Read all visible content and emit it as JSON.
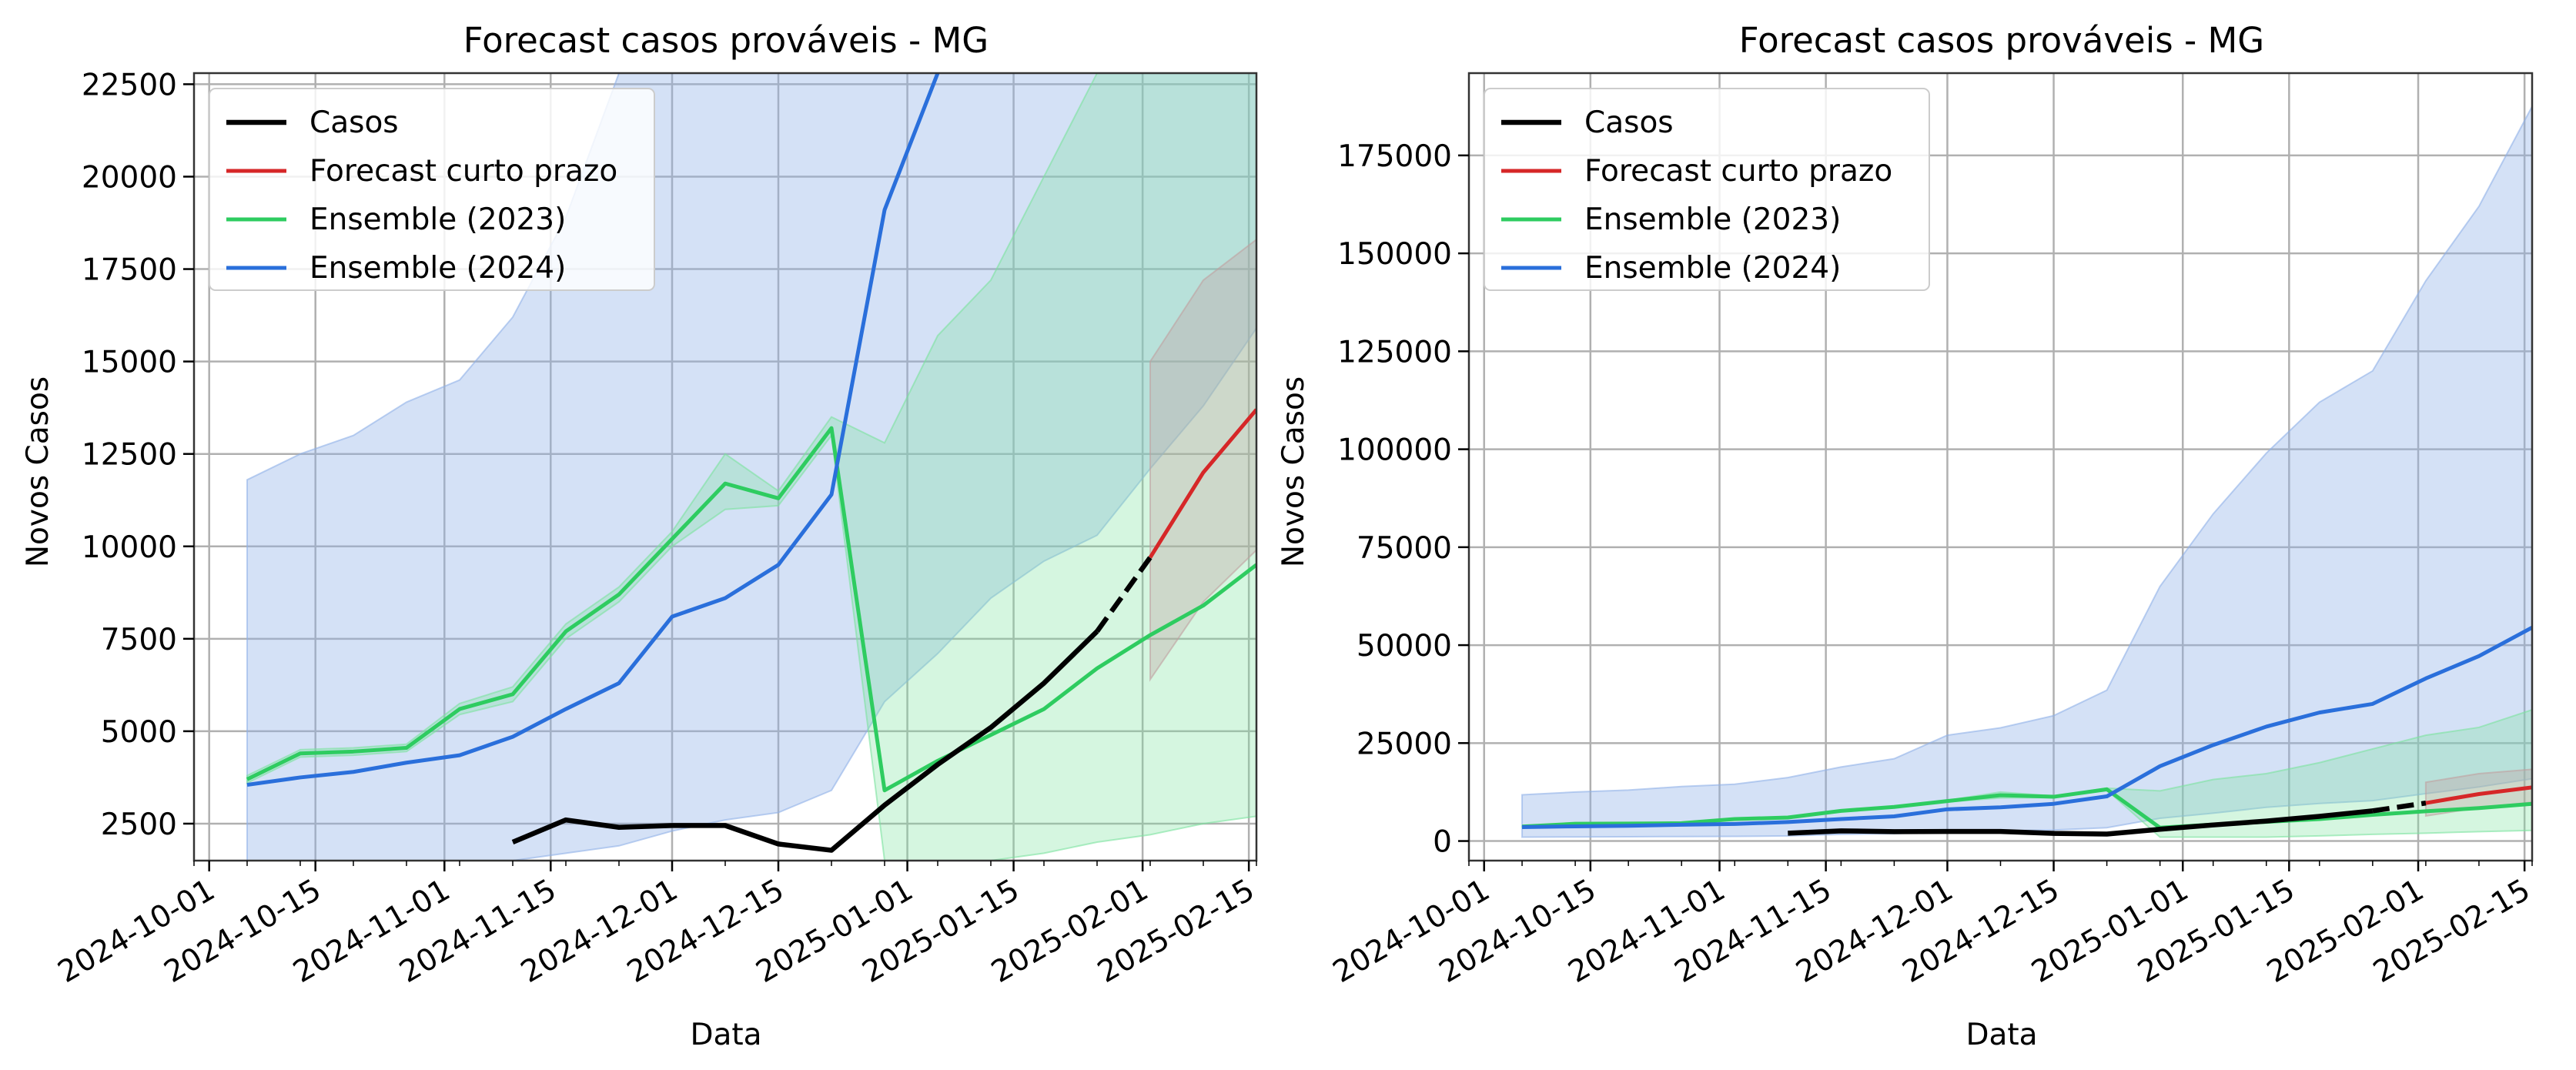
{
  "colors": {
    "casos": "#000000",
    "forecast": "#d62728",
    "ens2023": "#2ecc60",
    "ens2024": "#2a6fdb",
    "band2023": "#7be39f",
    "band2024": "#8fb0e8",
    "bandForecast": "#c0a0a0",
    "grid": "#b0b0b0"
  },
  "chart_data": [
    {
      "type": "line",
      "title": "Forecast casos prováveis - MG",
      "xlabel": "Data",
      "ylabel": "Novos Casos",
      "xlim": [
        "2024-09-29",
        "2025-02-16"
      ],
      "ylim": [
        1500,
        22800
      ],
      "grid": true,
      "legend_position": "top-left",
      "x_ticks": [
        "2024-10-01",
        "2024-10-15",
        "2024-11-01",
        "2024-11-15",
        "2024-12-01",
        "2024-12-15",
        "2025-01-01",
        "2025-01-15",
        "2025-02-01",
        "2025-02-15"
      ],
      "y_ticks": [
        "2500",
        "5000",
        "7500",
        "10000",
        "12500",
        "15000",
        "17500",
        "20000",
        "22500"
      ],
      "legend": [
        "Casos",
        "Forecast curto prazo",
        "Ensemble (2023)",
        "Ensemble (2024)"
      ],
      "series": [
        {
          "name": "Casos",
          "x": [
            "2024-11-10",
            "2024-11-17",
            "2024-11-24",
            "2024-12-01",
            "2024-12-08",
            "2024-12-15",
            "2024-12-22",
            "2024-12-29",
            "2025-01-05",
            "2025-01-12",
            "2025-01-19",
            "2025-01-26"
          ],
          "values": [
            2000,
            2600,
            2400,
            2450,
            2450,
            1950,
            1780,
            3000,
            4100,
            5100,
            6300,
            7700
          ]
        },
        {
          "name": "Casos (dashed)",
          "x": [
            "2025-01-26",
            "2025-02-02"
          ],
          "values": [
            7700,
            9700
          ]
        },
        {
          "name": "Forecast curto prazo",
          "x": [
            "2025-02-02",
            "2025-02-09",
            "2025-02-16"
          ],
          "values": [
            9700,
            12000,
            13700
          ]
        },
        {
          "name": "Ensemble (2023)",
          "x": [
            "2024-10-06",
            "2024-10-13",
            "2024-10-20",
            "2024-10-27",
            "2024-11-03",
            "2024-11-10",
            "2024-11-17",
            "2024-11-24",
            "2024-12-01",
            "2024-12-08",
            "2024-12-15",
            "2024-12-22",
            "2024-12-29",
            "2025-01-05",
            "2025-01-12",
            "2025-01-19",
            "2025-01-26",
            "2025-02-02",
            "2025-02-09",
            "2025-02-16"
          ],
          "values": [
            3700,
            4400,
            4450,
            4550,
            5600,
            6000,
            7700,
            8700,
            10200,
            11700,
            11300,
            13200,
            3400,
            4200,
            4900,
            5600,
            6700,
            7600,
            8400,
            9500
          ]
        },
        {
          "name": "Ensemble (2024)",
          "x": [
            "2024-10-06",
            "2024-10-13",
            "2024-10-20",
            "2024-10-27",
            "2024-11-03",
            "2024-11-10",
            "2024-11-17",
            "2024-11-24",
            "2024-12-01",
            "2024-12-08",
            "2024-12-15",
            "2024-12-22",
            "2024-12-29",
            "2025-01-05"
          ],
          "values": [
            3550,
            3750,
            3900,
            4150,
            4350,
            4850,
            5600,
            6300,
            8100,
            8600,
            9500,
            11400,
            19100,
            22800
          ]
        }
      ],
      "bands": [
        {
          "name": "Ensemble (2024) intervalo",
          "x": [
            "2024-10-06",
            "2024-10-13",
            "2024-10-20",
            "2024-10-27",
            "2024-11-03",
            "2024-11-10",
            "2024-11-17",
            "2024-11-24",
            "2024-12-01",
            "2024-12-08",
            "2024-12-15",
            "2024-12-22",
            "2024-12-29",
            "2025-01-05",
            "2025-01-12",
            "2025-01-19",
            "2025-01-26",
            "2025-02-02",
            "2025-02-09",
            "2025-02-16"
          ],
          "lower": [
            1500,
            1500,
            1500,
            1500,
            1500,
            1500,
            1700,
            1900,
            2300,
            2600,
            2800,
            3400,
            5800,
            7100,
            8600,
            9600,
            10300,
            12100,
            13800,
            15900
          ],
          "upper": [
            11800,
            12500,
            13000,
            13900,
            14500,
            16200,
            18900,
            22800,
            22800,
            22800,
            22800,
            22800,
            22800,
            22800,
            22800,
            22800,
            22800,
            22800,
            22800,
            22800
          ]
        },
        {
          "name": "Ensemble (2023) intervalo",
          "x": [
            "2024-10-06",
            "2024-10-13",
            "2024-10-20",
            "2024-10-27",
            "2024-11-03",
            "2024-11-10",
            "2024-11-17",
            "2024-11-24",
            "2024-12-01",
            "2024-12-08",
            "2024-12-15",
            "2024-12-22",
            "2024-12-29",
            "2025-01-05",
            "2025-01-12",
            "2025-01-19",
            "2025-01-26",
            "2025-02-02",
            "2025-02-09",
            "2025-02-16"
          ],
          "lower": [
            3600,
            4300,
            4350,
            4450,
            5450,
            5800,
            7500,
            8500,
            10000,
            11000,
            11100,
            13000,
            1500,
            1500,
            1500,
            1700,
            2000,
            2200,
            2500,
            2700
          ],
          "upper": [
            3800,
            4500,
            4550,
            4650,
            5750,
            6200,
            7900,
            8900,
            10400,
            12500,
            11500,
            13500,
            12800,
            15700,
            17200,
            20000,
            22800,
            22800,
            22800,
            22800
          ]
        },
        {
          "name": "Forecast curto prazo intervalo",
          "x": [
            "2025-02-02",
            "2025-02-09",
            "2025-02-16"
          ],
          "lower": [
            6400,
            8500,
            9900
          ],
          "upper": [
            15000,
            17200,
            18300
          ]
        }
      ]
    },
    {
      "type": "line",
      "title": "Forecast casos prováveis - MG",
      "xlabel": "Data",
      "ylabel": "Novos Casos",
      "xlim": [
        "2024-09-29",
        "2025-02-16"
      ],
      "ylim": [
        -5000,
        196000
      ],
      "grid": true,
      "legend_position": "top-left",
      "x_ticks": [
        "2024-10-01",
        "2024-10-15",
        "2024-11-01",
        "2024-11-15",
        "2024-12-01",
        "2024-12-15",
        "2025-01-01",
        "2025-01-15",
        "2025-02-01",
        "2025-02-15"
      ],
      "y_ticks": [
        "0",
        "25000",
        "50000",
        "75000",
        "100000",
        "125000",
        "150000",
        "175000"
      ],
      "legend": [
        "Casos",
        "Forecast curto prazo",
        "Ensemble (2023)",
        "Ensemble (2024)"
      ],
      "series": [
        {
          "name": "Casos",
          "x": [
            "2024-11-10",
            "2024-11-17",
            "2024-11-24",
            "2024-12-01",
            "2024-12-08",
            "2024-12-15",
            "2024-12-22",
            "2024-12-29",
            "2025-01-05",
            "2025-01-12",
            "2025-01-19",
            "2025-01-26"
          ],
          "values": [
            2000,
            2600,
            2400,
            2450,
            2450,
            1950,
            1780,
            3000,
            4100,
            5100,
            6300,
            7700
          ]
        },
        {
          "name": "Casos (dashed)",
          "x": [
            "2025-01-26",
            "2025-02-02"
          ],
          "values": [
            7700,
            9700
          ]
        },
        {
          "name": "Forecast curto prazo",
          "x": [
            "2025-02-02",
            "2025-02-09",
            "2025-02-16"
          ],
          "values": [
            9700,
            12000,
            13700
          ]
        },
        {
          "name": "Ensemble (2023)",
          "x": [
            "2024-10-06",
            "2024-10-13",
            "2024-10-20",
            "2024-10-27",
            "2024-11-03",
            "2024-11-10",
            "2024-11-17",
            "2024-11-24",
            "2024-12-01",
            "2024-12-08",
            "2024-12-15",
            "2024-12-22",
            "2024-12-29",
            "2025-01-05",
            "2025-01-12",
            "2025-01-19",
            "2025-01-26",
            "2025-02-02",
            "2025-02-09",
            "2025-02-16"
          ],
          "values": [
            3700,
            4400,
            4450,
            4550,
            5600,
            6000,
            7700,
            8700,
            10200,
            11700,
            11300,
            13200,
            3400,
            4200,
            4900,
            5600,
            6700,
            7600,
            8400,
            9500
          ]
        },
        {
          "name": "Ensemble (2024)",
          "x": [
            "2024-10-06",
            "2024-10-13",
            "2024-10-20",
            "2024-10-27",
            "2024-11-03",
            "2024-11-10",
            "2024-11-17",
            "2024-11-24",
            "2024-12-01",
            "2024-12-08",
            "2024-12-15",
            "2024-12-22",
            "2024-12-29",
            "2025-01-05",
            "2025-01-12",
            "2025-01-19",
            "2025-01-26",
            "2025-02-02",
            "2025-02-09",
            "2025-02-16"
          ],
          "values": [
            3550,
            3750,
            3900,
            4150,
            4350,
            4850,
            5600,
            6300,
            8100,
            8600,
            9500,
            11400,
            19100,
            24500,
            29200,
            32800,
            35000,
            41500,
            47200,
            54500
          ]
        }
      ],
      "bands": [
        {
          "name": "Ensemble (2024) intervalo",
          "x": [
            "2024-10-06",
            "2024-10-13",
            "2024-10-20",
            "2024-10-27",
            "2024-11-03",
            "2024-11-10",
            "2024-11-17",
            "2024-11-24",
            "2024-12-01",
            "2024-12-08",
            "2024-12-15",
            "2024-12-22",
            "2024-12-29",
            "2025-01-05",
            "2025-01-12",
            "2025-01-19",
            "2025-01-26",
            "2025-02-02",
            "2025-02-09",
            "2025-02-16"
          ],
          "lower": [
            1000,
            1050,
            1100,
            1150,
            1200,
            1300,
            1700,
            1900,
            2300,
            2600,
            2800,
            3400,
            5800,
            7100,
            8600,
            9600,
            10300,
            12100,
            13800,
            15900
          ],
          "upper": [
            11800,
            12500,
            13000,
            13900,
            14500,
            16200,
            18900,
            21000,
            27000,
            28900,
            32000,
            38500,
            65000,
            83500,
            99000,
            112000,
            120000,
            143000,
            162000,
            187500
          ]
        },
        {
          "name": "Ensemble (2023) intervalo",
          "x": [
            "2024-10-06",
            "2024-10-13",
            "2024-10-20",
            "2024-10-27",
            "2024-11-03",
            "2024-11-10",
            "2024-11-17",
            "2024-11-24",
            "2024-12-01",
            "2024-12-08",
            "2024-12-15",
            "2024-12-22",
            "2024-12-29",
            "2025-01-05",
            "2025-01-12",
            "2025-01-19",
            "2025-01-26",
            "2025-02-02",
            "2025-02-09",
            "2025-02-16"
          ],
          "lower": [
            3600,
            4300,
            4350,
            4450,
            5450,
            5800,
            7500,
            8500,
            10000,
            11000,
            11100,
            13000,
            1000,
            1000,
            1000,
            1300,
            1700,
            2000,
            2400,
            2700
          ],
          "upper": [
            3800,
            4500,
            4550,
            4650,
            5750,
            6200,
            7900,
            8900,
            10400,
            12500,
            11500,
            13500,
            12800,
            15700,
            17200,
            20000,
            23500,
            27000,
            29000,
            33500
          ]
        },
        {
          "name": "Forecast curto prazo intervalo",
          "x": [
            "2025-02-02",
            "2025-02-09",
            "2025-02-16"
          ],
          "lower": [
            6400,
            8500,
            9900
          ],
          "upper": [
            15000,
            17200,
            18300
          ]
        }
      ]
    }
  ]
}
